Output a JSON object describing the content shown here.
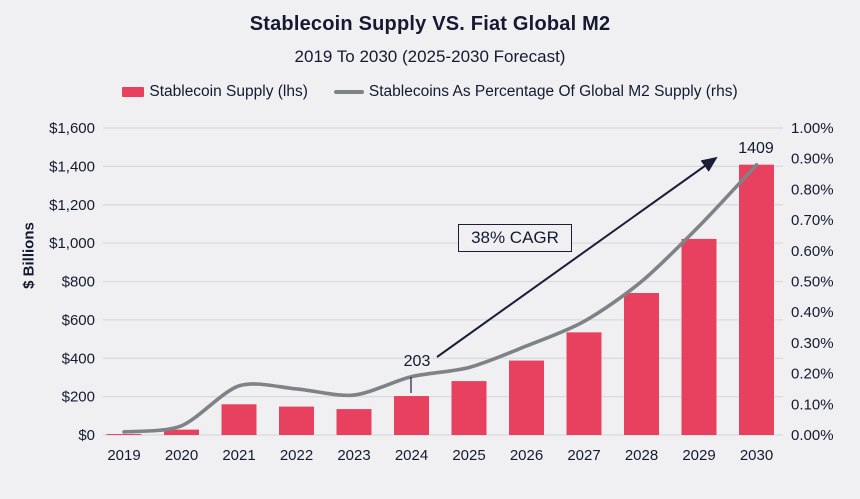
{
  "title": "Stablecoin Supply VS. Fiat Global M2",
  "subtitle": "2019 To 2030 (2025-2030 Forecast)",
  "legend": [
    {
      "label": "Stablecoin Supply (lhs)",
      "marker": "bar-swatch",
      "color": "#e8415f"
    },
    {
      "label": "Stablecoins As Percentage Of Global M2 Supply (rhs)",
      "marker": "line-swatch",
      "color": "#7e8388"
    }
  ],
  "colors": {
    "background": "#f0f0f3",
    "bar": "#e8415f",
    "line": "#7e8388",
    "text": "#151a30",
    "grid": "#d9dade",
    "arrow": "#1a1f37"
  },
  "left_axis": {
    "title": "$ Billions",
    "ticks": [
      {
        "label": "$1,600",
        "value": 1600
      },
      {
        "label": "$1,400",
        "value": 1400
      },
      {
        "label": "$1,200",
        "value": 1200
      },
      {
        "label": "$1,000",
        "value": 1000
      },
      {
        "label": "$800",
        "value": 800
      },
      {
        "label": "$600",
        "value": 600
      },
      {
        "label": "$400",
        "value": 400
      },
      {
        "label": "$200",
        "value": 200
      },
      {
        "label": "$0",
        "value": 0
      }
    ]
  },
  "right_axis": {
    "ticks": [
      {
        "label": "1.00%",
        "value": 1.0
      },
      {
        "label": "0.90%",
        "value": 0.9
      },
      {
        "label": "0.80%",
        "value": 0.8
      },
      {
        "label": "0.70%",
        "value": 0.7
      },
      {
        "label": "0.60%",
        "value": 0.6
      },
      {
        "label": "0.50%",
        "value": 0.5
      },
      {
        "label": "0.40%",
        "value": 0.4
      },
      {
        "label": "0.30%",
        "value": 0.3
      },
      {
        "label": "0.20%",
        "value": 0.2
      },
      {
        "label": "0.10%",
        "value": 0.1
      },
      {
        "label": "0.00%",
        "value": 0.0
      }
    ]
  },
  "annotations": {
    "cagr": "38% CAGR",
    "label_2024": "203",
    "label_2030": "1409"
  },
  "chart_data": {
    "type": "bar+line",
    "title": "Stablecoin Supply VS. Fiat Global M2",
    "subtitle": "2019 To 2030 (2025-2030 Forecast)",
    "categories": [
      "2019",
      "2020",
      "2021",
      "2022",
      "2023",
      "2024",
      "2025",
      "2026",
      "2027",
      "2028",
      "2029",
      "2030"
    ],
    "series": [
      {
        "name": "Stablecoin Supply (lhs)",
        "type": "bar",
        "axis": "left",
        "units": "$ Billions",
        "values": [
          5,
          28,
          160,
          148,
          135,
          203,
          281,
          388,
          535,
          740,
          1022,
          1409
        ]
      },
      {
        "name": "Stablecoins As Percentage Of Global M2 Supply (rhs)",
        "type": "line",
        "axis": "right",
        "units": "%",
        "values": [
          0.01,
          0.03,
          0.16,
          0.15,
          0.13,
          0.19,
          0.22,
          0.29,
          0.37,
          0.5,
          0.68,
          0.88
        ]
      }
    ],
    "ylabel_left": "$ Billions",
    "ylim_left": [
      0,
      1600
    ],
    "ylim_right": [
      0,
      1.0
    ],
    "grid": true,
    "legend_position": "top",
    "annotated_values": {
      "2024": 203,
      "2030": 1409
    },
    "cagr_annotation": "38% CAGR"
  }
}
